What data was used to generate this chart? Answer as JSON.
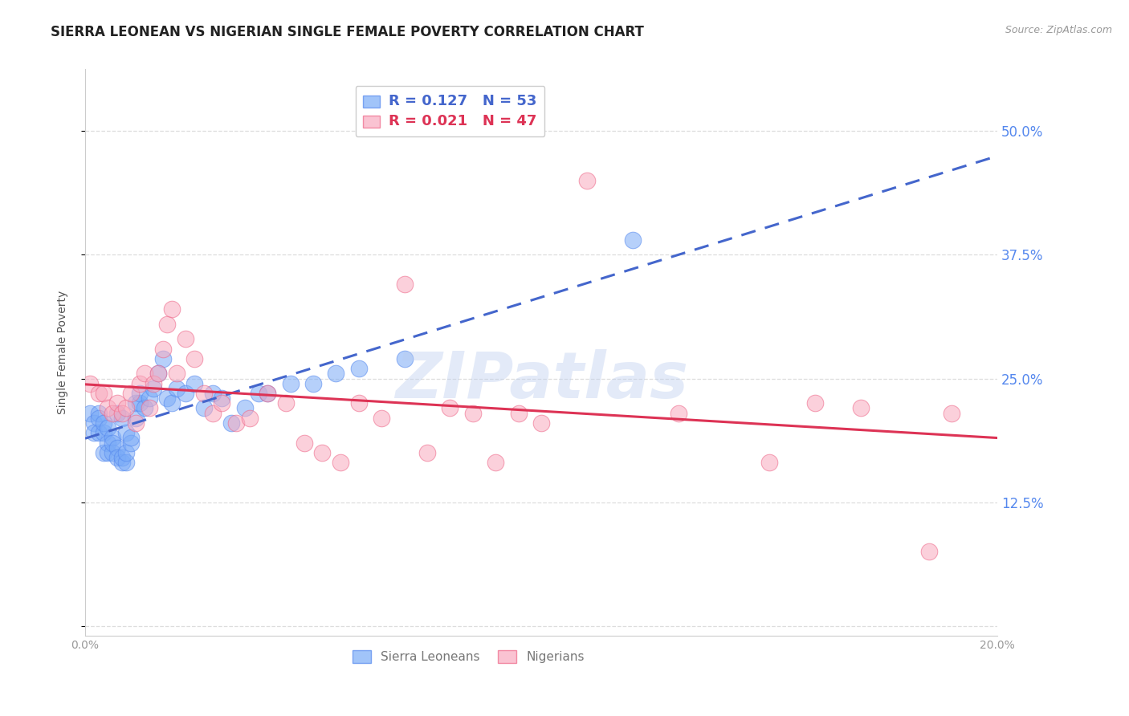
{
  "title": "SIERRA LEONEAN VS NIGERIAN SINGLE FEMALE POVERTY CORRELATION CHART",
  "source": "Source: ZipAtlas.com",
  "ylabel": "Single Female Poverty",
  "xlim": [
    0.0,
    0.2
  ],
  "ylim": [
    -0.01,
    0.5625
  ],
  "yticks": [
    0.0,
    0.125,
    0.25,
    0.375,
    0.5
  ],
  "ytick_labels": [
    "",
    "12.5%",
    "25.0%",
    "37.5%",
    "50.0%"
  ],
  "xticks": [
    0.0,
    0.05,
    0.1,
    0.15,
    0.2
  ],
  "xtick_labels": [
    "0.0%",
    "",
    "",
    "",
    "20.0%"
  ],
  "legend_label_blue": "Sierra Leoneans",
  "legend_label_pink": "Nigerians",
  "blue_color": "#7AABF7",
  "pink_color": "#F9AABF",
  "blue_edge_color": "#5588EE",
  "pink_edge_color": "#EE6688",
  "blue_trend_color": "#4466CC",
  "pink_trend_color": "#DD3355",
  "watermark": "ZIPatlas",
  "watermark_color": "#BBCCEE",
  "title_fontsize": 12,
  "axis_label_fontsize": 10,
  "tick_fontsize": 10,
  "right_tick_color": "#5588EE",
  "blue_x": [
    0.001,
    0.002,
    0.002,
    0.003,
    0.003,
    0.003,
    0.004,
    0.004,
    0.004,
    0.005,
    0.005,
    0.005,
    0.006,
    0.006,
    0.006,
    0.007,
    0.007,
    0.007,
    0.008,
    0.008,
    0.008,
    0.009,
    0.009,
    0.009,
    0.01,
    0.01,
    0.011,
    0.011,
    0.012,
    0.012,
    0.013,
    0.014,
    0.015,
    0.016,
    0.017,
    0.018,
    0.019,
    0.02,
    0.022,
    0.024,
    0.026,
    0.028,
    0.03,
    0.032,
    0.035,
    0.038,
    0.04,
    0.045,
    0.05,
    0.055,
    0.06,
    0.07,
    0.12
  ],
  "blue_y": [
    0.215,
    0.205,
    0.195,
    0.215,
    0.195,
    0.21,
    0.195,
    0.175,
    0.205,
    0.2,
    0.185,
    0.175,
    0.19,
    0.175,
    0.185,
    0.18,
    0.17,
    0.215,
    0.165,
    0.17,
    0.21,
    0.165,
    0.175,
    0.195,
    0.185,
    0.19,
    0.21,
    0.225,
    0.225,
    0.235,
    0.22,
    0.23,
    0.24,
    0.255,
    0.27,
    0.23,
    0.225,
    0.24,
    0.235,
    0.245,
    0.22,
    0.235,
    0.23,
    0.205,
    0.22,
    0.235,
    0.235,
    0.245,
    0.245,
    0.255,
    0.26,
    0.27,
    0.39
  ],
  "pink_x": [
    0.001,
    0.003,
    0.004,
    0.005,
    0.006,
    0.007,
    0.008,
    0.009,
    0.01,
    0.011,
    0.012,
    0.013,
    0.014,
    0.015,
    0.016,
    0.017,
    0.018,
    0.019,
    0.02,
    0.022,
    0.024,
    0.026,
    0.028,
    0.03,
    0.033,
    0.036,
    0.04,
    0.044,
    0.048,
    0.052,
    0.056,
    0.06,
    0.065,
    0.07,
    0.075,
    0.08,
    0.085,
    0.09,
    0.095,
    0.1,
    0.11,
    0.13,
    0.15,
    0.16,
    0.17,
    0.185,
    0.19
  ],
  "pink_y": [
    0.245,
    0.235,
    0.235,
    0.22,
    0.215,
    0.225,
    0.215,
    0.22,
    0.235,
    0.205,
    0.245,
    0.255,
    0.22,
    0.245,
    0.255,
    0.28,
    0.305,
    0.32,
    0.255,
    0.29,
    0.27,
    0.235,
    0.215,
    0.225,
    0.205,
    0.21,
    0.235,
    0.225,
    0.185,
    0.175,
    0.165,
    0.225,
    0.21,
    0.345,
    0.175,
    0.22,
    0.215,
    0.165,
    0.215,
    0.205,
    0.45,
    0.215,
    0.165,
    0.225,
    0.22,
    0.075,
    0.215
  ]
}
